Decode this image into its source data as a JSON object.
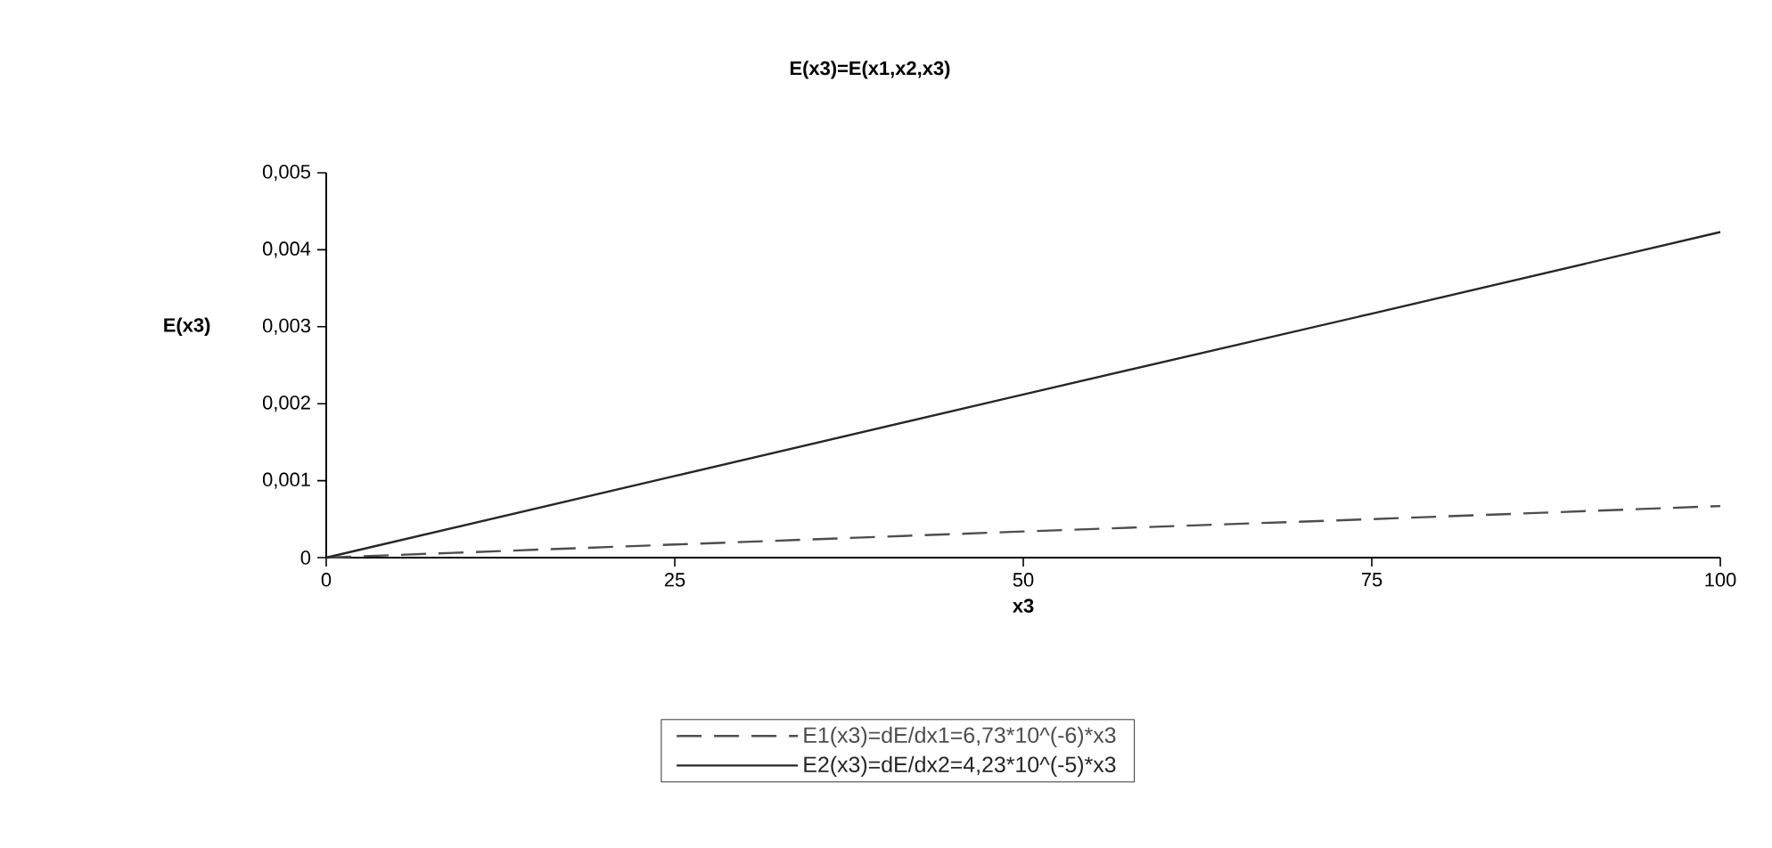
{
  "chart_data": {
    "type": "line",
    "title": "E(x3)=E(x1,x2,x3)",
    "xlabel": "x3",
    "ylabel": "E(x3)",
    "x": [
      0,
      25,
      50,
      75,
      100
    ],
    "series": [
      {
        "name": "E1(x3)=dE/dx1=6,73*10^(-6)*x3",
        "color": "#4d4d4d",
        "line_style": "dashed",
        "values": [
          0,
          0.00017,
          0.00034,
          0.0005,
          0.00067
        ]
      },
      {
        "name": "E2(x3)=dE/dx2=4,23*10^(-5)*x3",
        "color": "#262626",
        "line_style": "solid",
        "values": [
          0,
          0.00106,
          0.00212,
          0.00317,
          0.00423
        ]
      }
    ],
    "xlim": [
      0,
      100
    ],
    "ylim": [
      0,
      0.005
    ],
    "xticks": [
      0,
      25,
      50,
      75,
      100
    ],
    "yticks": [
      {
        "value": 0,
        "label": "0"
      },
      {
        "value": 0.001,
        "label": "0,001"
      },
      {
        "value": 0.002,
        "label": "0,002"
      },
      {
        "value": 0.003,
        "label": "0,003"
      },
      {
        "value": 0.004,
        "label": "0,004"
      },
      {
        "value": 0.005,
        "label": "0,005"
      }
    ],
    "grid": false,
    "legend": "bottom",
    "marker": "none"
  }
}
